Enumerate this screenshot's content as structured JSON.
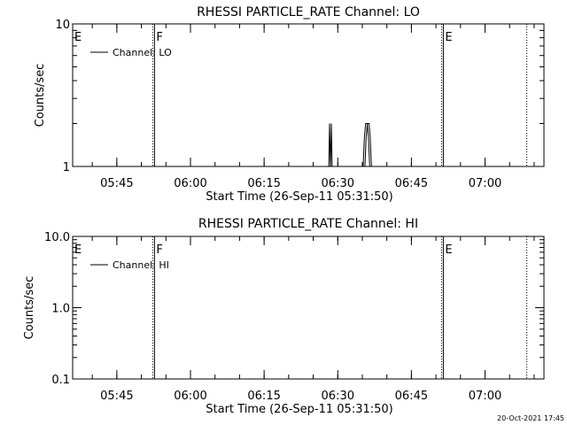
{
  "colors": {
    "background": "#ffffff",
    "ink": "#000000"
  },
  "footer": {
    "timestamp": "20-Oct-2021 17:45"
  },
  "chart_data": [
    {
      "type": "line",
      "title": "RHESSI PARTICLE_RATE Channel: LO",
      "xlabel": "Start Time (26-Sep-11 05:31:50)",
      "ylabel": "Counts/sec",
      "y_scale": "log",
      "ylim": [
        1,
        10
      ],
      "xlim": [
        "05:36:00",
        "07:12:00"
      ],
      "y_ticks": [
        {
          "value": 1,
          "label": "1"
        },
        {
          "value": 10,
          "label": "10"
        }
      ],
      "x_ticks": [
        {
          "value": "05:45",
          "label": "05:45"
        },
        {
          "value": "06:00",
          "label": "06:00"
        },
        {
          "value": "06:15",
          "label": "06:15"
        },
        {
          "value": "06:30",
          "label": "06:30"
        },
        {
          "value": "06:45",
          "label": "06:45"
        },
        {
          "value": "07:00",
          "label": "07:00"
        }
      ],
      "legend": {
        "position": "top-left",
        "entries": [
          "Channel: LO"
        ]
      },
      "markers": [
        {
          "time": "05:36:00",
          "label": "E",
          "style": "none"
        },
        {
          "time": "05:52:40",
          "label": "F",
          "style": "dotted-solid"
        },
        {
          "time": "06:51:30",
          "label": "E",
          "style": "dotted-solid"
        },
        {
          "time": "07:08:30",
          "label": "",
          "style": "dotted"
        }
      ],
      "series": [
        {
          "name": "Channel: LO",
          "points": [
            [
              "06:28:10",
              1
            ],
            [
              "06:28:20",
              2
            ],
            [
              "06:28:30",
              1
            ],
            [
              "06:35:10",
              1
            ],
            [
              "06:35:25",
              1.6
            ],
            [
              "06:35:40",
              2
            ],
            [
              "06:36:00",
              2
            ],
            [
              "06:36:15",
              1.6
            ],
            [
              "06:36:30",
              1
            ]
          ]
        }
      ]
    },
    {
      "type": "line",
      "title": "RHESSI PARTICLE_RATE Channel: HI",
      "xlabel": "Start Time (26-Sep-11 05:31:50)",
      "ylabel": "Counts/sec",
      "y_scale": "log",
      "ylim": [
        0.1,
        10
      ],
      "xlim": [
        "05:36:00",
        "07:12:00"
      ],
      "y_ticks": [
        {
          "value": 0.1,
          "label": "0.1"
        },
        {
          "value": 1,
          "label": "1.0"
        },
        {
          "value": 10,
          "label": "10.0"
        }
      ],
      "x_ticks": [
        {
          "value": "05:45",
          "label": "05:45"
        },
        {
          "value": "06:00",
          "label": "06:00"
        },
        {
          "value": "06:15",
          "label": "06:15"
        },
        {
          "value": "06:30",
          "label": "06:30"
        },
        {
          "value": "06:45",
          "label": "06:45"
        },
        {
          "value": "07:00",
          "label": "07:00"
        }
      ],
      "legend": {
        "position": "top-left",
        "entries": [
          "Channel: HI"
        ]
      },
      "markers": [
        {
          "time": "05:36:00",
          "label": "E",
          "style": "none"
        },
        {
          "time": "05:52:40",
          "label": "F",
          "style": "dotted-solid"
        },
        {
          "time": "06:51:30",
          "label": "E",
          "style": "dotted-solid"
        },
        {
          "time": "07:08:30",
          "label": "",
          "style": "dotted"
        }
      ],
      "series": [
        {
          "name": "Channel: HI",
          "points": []
        }
      ]
    }
  ]
}
